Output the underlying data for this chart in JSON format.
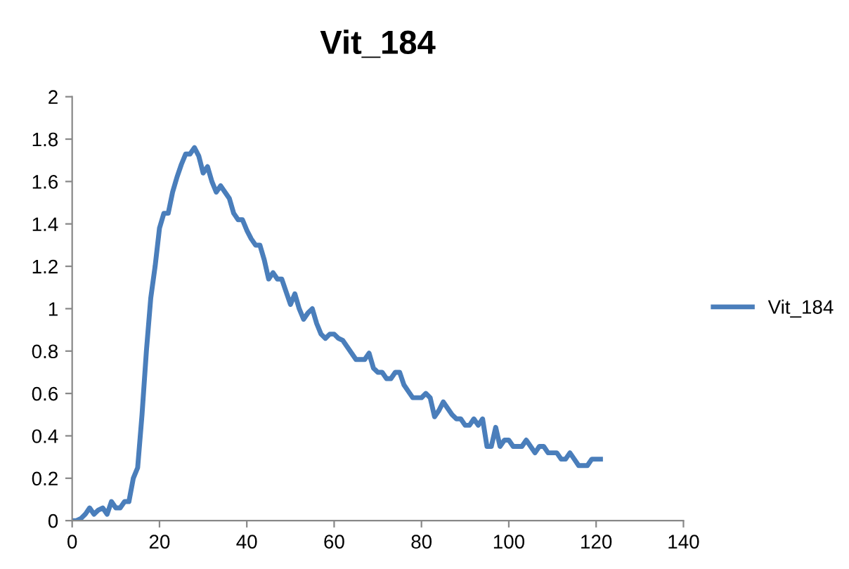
{
  "chart_data": {
    "type": "line",
    "title": "Vit_184",
    "x": [
      0,
      1,
      2,
      3,
      4,
      5,
      6,
      7,
      8,
      9,
      10,
      11,
      12,
      13,
      14,
      15,
      16,
      17,
      18,
      19,
      20,
      21,
      22,
      23,
      24,
      25,
      26,
      27,
      28,
      29,
      30,
      31,
      32,
      33,
      34,
      35,
      36,
      37,
      38,
      39,
      40,
      41,
      42,
      43,
      44,
      45,
      46,
      47,
      48,
      49,
      50,
      51,
      52,
      53,
      54,
      55,
      56,
      57,
      58,
      59,
      60,
      61,
      62,
      63,
      64,
      65,
      66,
      67,
      68,
      69,
      70,
      71,
      72,
      73,
      74,
      75,
      76,
      77,
      78,
      79,
      80,
      81,
      82,
      83,
      84,
      85,
      86,
      87,
      88,
      89,
      90,
      91,
      92,
      93,
      94,
      95,
      96,
      97,
      98,
      99,
      100,
      101,
      102,
      103,
      104,
      105,
      106,
      107,
      108,
      109,
      110,
      111,
      112,
      113,
      114,
      115,
      116,
      117,
      118,
      119,
      120,
      121
    ],
    "series": [
      {
        "name": "Vit_184",
        "color": "#4a7ebb",
        "values": [
          0,
          0,
          0.01,
          0.03,
          0.06,
          0.03,
          0.05,
          0.06,
          0.03,
          0.09,
          0.06,
          0.06,
          0.09,
          0.09,
          0.2,
          0.25,
          0.5,
          0.8,
          1.05,
          1.2,
          1.38,
          1.45,
          1.45,
          1.55,
          1.62,
          1.68,
          1.73,
          1.73,
          1.76,
          1.72,
          1.64,
          1.67,
          1.6,
          1.55,
          1.58,
          1.55,
          1.52,
          1.45,
          1.42,
          1.42,
          1.37,
          1.33,
          1.3,
          1.3,
          1.23,
          1.14,
          1.17,
          1.14,
          1.14,
          1.08,
          1.02,
          1.07,
          1.0,
          0.95,
          0.98,
          1.0,
          0.93,
          0.88,
          0.86,
          0.88,
          0.88,
          0.86,
          0.85,
          0.82,
          0.79,
          0.76,
          0.76,
          0.76,
          0.79,
          0.72,
          0.7,
          0.7,
          0.67,
          0.67,
          0.7,
          0.7,
          0.64,
          0.61,
          0.58,
          0.58,
          0.58,
          0.6,
          0.58,
          0.49,
          0.52,
          0.56,
          0.53,
          0.5,
          0.48,
          0.48,
          0.45,
          0.45,
          0.48,
          0.45,
          0.48,
          0.35,
          0.35,
          0.44,
          0.35,
          0.38,
          0.38,
          0.35,
          0.35,
          0.35,
          0.38,
          0.35,
          0.32,
          0.35,
          0.35,
          0.32,
          0.32,
          0.32,
          0.29,
          0.29,
          0.32,
          0.29,
          0.26,
          0.26,
          0.26,
          0.29,
          0.29,
          0.29
        ]
      }
    ],
    "xlim": [
      0,
      140
    ],
    "xticks": [
      0,
      20,
      40,
      60,
      80,
      100,
      120,
      140
    ],
    "ylim": [
      0,
      2
    ],
    "yticks": [
      0,
      {
        "value": 0.2,
        "label": "0.2"
      },
      {
        "value": 0.4,
        "label": "0.4"
      },
      {
        "value": 0.6,
        "label": "0.6"
      },
      {
        "value": 0.8,
        "label": "0.8"
      },
      1,
      {
        "value": 1.2,
        "label": "1.2"
      },
      {
        "value": 1.4,
        "label": "1.4"
      },
      {
        "value": 1.6,
        "label": "1.6"
      },
      {
        "value": 1.8,
        "label": "1.8"
      },
      2
    ],
    "grid": false,
    "legend": "right",
    "marker": "none",
    "line_style": "solid"
  }
}
